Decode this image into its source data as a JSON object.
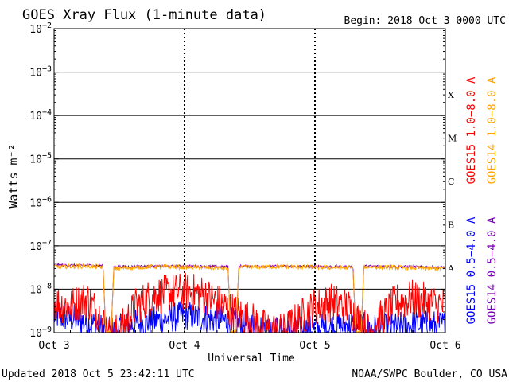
{
  "title": "GOES Xray Flux (1-minute data)",
  "begin": "Begin:  2018 Oct 3 0000 UTC",
  "updated": "Updated 2018 Oct  5 23:42:11 UTC",
  "credit": "NOAA/SWPC Boulder, CO USA",
  "colors": {
    "goes15_long": "#ff0000",
    "goes14_long": "#ffa500",
    "goes15_short": "#0000ff",
    "goes14_short": "#7a00b8",
    "axis": "#000000",
    "background": "#ffffff"
  },
  "chart_data": {
    "type": "line",
    "title": "GOES Xray Flux (1-minute data)",
    "xlabel": "Universal Time",
    "ylabel": "Watts m⁻²",
    "y_scale": "log",
    "ylim": [
      1e-09,
      0.01
    ],
    "xlim": [
      "2018-10-03",
      "2018-10-06"
    ],
    "x_ticks": [
      {
        "value": "2018-10-03",
        "label": "Oct 3"
      },
      {
        "value": "2018-10-04",
        "label": "Oct 4"
      },
      {
        "value": "2018-10-05",
        "label": "Oct 5"
      },
      {
        "value": "2018-10-06",
        "label": "Oct 6"
      }
    ],
    "y_ticks": [
      {
        "exp": -9,
        "base": "10",
        "sup": "−9"
      },
      {
        "exp": -8,
        "base": "10",
        "sup": "−8"
      },
      {
        "exp": -7,
        "base": "10",
        "sup": "−7"
      },
      {
        "exp": -6,
        "base": "10",
        "sup": "−6"
      },
      {
        "exp": -5,
        "base": "10",
        "sup": "−5"
      },
      {
        "exp": -4,
        "base": "10",
        "sup": "−4"
      },
      {
        "exp": -3,
        "base": "10",
        "sup": "−3"
      },
      {
        "exp": -2,
        "base": "10",
        "sup": "−2"
      }
    ],
    "flare_classes": [
      {
        "label": "A",
        "lower_exp": -8
      },
      {
        "label": "B",
        "lower_exp": -7
      },
      {
        "label": "C",
        "lower_exp": -6
      },
      {
        "label": "M",
        "lower_exp": -5
      },
      {
        "label": "X",
        "lower_exp": -4
      }
    ],
    "grid": "horizontal lines at each decade; dotted vertical lines at day boundaries",
    "legend": [
      {
        "key": "goes15_long",
        "label": "GOES15 1.0−8.0 A",
        "color": "#ff0000"
      },
      {
        "key": "goes14_long",
        "label": "GOES14 1.0−8.0 A",
        "color": "#ffa500"
      },
      {
        "key": "goes15_short",
        "label": "GOES15 0.5−4.0 A",
        "color": "#0000ff"
      },
      {
        "key": "goes14_short",
        "label": "GOES14 0.5−4.0 A",
        "color": "#7a00b8"
      }
    ],
    "series": [
      {
        "name": "GOES15 1.0−8.0 A",
        "key": "goes15_long",
        "color": "#ff0000",
        "points": [
          [
            "2018-10-03 00:00",
            5e-09
          ],
          [
            "2018-10-03 03:00",
            4e-09
          ],
          [
            "2018-10-03 06:00",
            6e-09
          ],
          [
            "2018-10-03 08:00",
            3e-09
          ],
          [
            "2018-10-03 10:00",
            1e-09
          ],
          [
            "2018-10-03 12:00",
            1e-09
          ],
          [
            "2018-10-03 15:00",
            4e-09
          ],
          [
            "2018-10-03 18:00",
            7e-09
          ],
          [
            "2018-10-03 21:00",
            8e-09
          ],
          [
            "2018-10-04 00:00",
            9e-09
          ],
          [
            "2018-10-04 03:00",
            8e-09
          ],
          [
            "2018-10-04 06:00",
            5e-09
          ],
          [
            "2018-10-04 09:00",
            3e-09
          ],
          [
            "2018-10-04 12:00",
            2e-09
          ],
          [
            "2018-10-04 15:00",
            1.2e-09
          ],
          [
            "2018-10-04 18:00",
            1e-09
          ],
          [
            "2018-10-04 21:00",
            2e-09
          ],
          [
            "2018-10-05 00:00",
            4e-09
          ],
          [
            "2018-10-05 03:00",
            5e-09
          ],
          [
            "2018-10-05 06:00",
            4e-09
          ],
          [
            "2018-10-05 08:00",
            2e-09
          ],
          [
            "2018-10-05 10:00",
            1e-09
          ],
          [
            "2018-10-05 12:00",
            2e-09
          ],
          [
            "2018-10-05 15:00",
            5e-09
          ],
          [
            "2018-10-05 18:00",
            6e-09
          ],
          [
            "2018-10-05 21:00",
            5e-09
          ],
          [
            "2018-10-06 00:00",
            4e-09
          ]
        ]
      },
      {
        "name": "GOES14 1.0−8.0 A",
        "key": "goes14_long",
        "color": "#ffa500",
        "points": [
          [
            "2018-10-03 00:00",
            3.3e-08
          ],
          [
            "2018-10-03 06:00",
            3.4e-08
          ],
          [
            "2018-10-03 09:00",
            3.2e-08
          ],
          [
            "2018-10-03 09:30",
            1e-09
          ],
          [
            "2018-10-03 10:30",
            1e-09
          ],
          [
            "2018-10-03 11:00",
            3e-08
          ],
          [
            "2018-10-03 18:00",
            3.3e-08
          ],
          [
            "2018-10-04 00:00",
            3.2e-08
          ],
          [
            "2018-10-04 06:00",
            3.1e-08
          ],
          [
            "2018-10-04 08:00",
            3e-08
          ],
          [
            "2018-10-04 08:30",
            1e-09
          ],
          [
            "2018-10-04 09:30",
            1e-09
          ],
          [
            "2018-10-04 10:00",
            3.2e-08
          ],
          [
            "2018-10-04 18:00",
            3.3e-08
          ],
          [
            "2018-10-05 00:00",
            3.2e-08
          ],
          [
            "2018-10-05 07:00",
            3.1e-08
          ],
          [
            "2018-10-05 07:30",
            1e-09
          ],
          [
            "2018-10-05 08:30",
            1e-09
          ],
          [
            "2018-10-05 09:00",
            3.3e-08
          ],
          [
            "2018-10-05 18:00",
            3.1e-08
          ],
          [
            "2018-10-06 00:00",
            3e-08
          ]
        ]
      },
      {
        "name": "GOES15 0.5−4.0 A",
        "key": "goes15_short",
        "color": "#0000ff",
        "points": [
          [
            "2018-10-03 00:00",
            2.5e-09
          ],
          [
            "2018-10-03 04:00",
            2e-09
          ],
          [
            "2018-10-03 08:00",
            1.5e-09
          ],
          [
            "2018-10-03 10:00",
            1e-09
          ],
          [
            "2018-10-03 14:00",
            1.5e-09
          ],
          [
            "2018-10-03 20:00",
            2e-09
          ],
          [
            "2018-10-04 00:00",
            2.5e-09
          ],
          [
            "2018-10-04 06:00",
            2e-09
          ],
          [
            "2018-10-04 12:00",
            1.5e-09
          ],
          [
            "2018-10-04 18:00",
            1e-09
          ],
          [
            "2018-10-05 00:00",
            1.2e-09
          ],
          [
            "2018-10-05 06:00",
            1.5e-09
          ],
          [
            "2018-10-05 12:00",
            1.2e-09
          ],
          [
            "2018-10-05 18:00",
            1.5e-09
          ],
          [
            "2018-10-06 00:00",
            1.5e-09
          ]
        ]
      },
      {
        "name": "GOES14 0.5−4.0 A",
        "key": "goes14_short",
        "color": "#7a00b8",
        "points": [
          [
            "2018-10-03 00:00",
            3.6e-08
          ],
          [
            "2018-10-03 09:00",
            3.5e-08
          ],
          [
            "2018-10-03 09:30",
            1e-09
          ],
          [
            "2018-10-03 10:30",
            1e-09
          ],
          [
            "2018-10-03 11:00",
            3.3e-08
          ],
          [
            "2018-10-04 00:00",
            3.4e-08
          ],
          [
            "2018-10-04 08:00",
            3.3e-08
          ],
          [
            "2018-10-04 08:30",
            1e-09
          ],
          [
            "2018-10-04 09:30",
            1e-09
          ],
          [
            "2018-10-04 10:00",
            3.4e-08
          ],
          [
            "2018-10-05 07:00",
            3.3e-08
          ],
          [
            "2018-10-05 07:30",
            1e-09
          ],
          [
            "2018-10-05 08:30",
            1e-09
          ],
          [
            "2018-10-05 09:00",
            3.4e-08
          ],
          [
            "2018-10-06 00:00",
            3.2e-08
          ]
        ]
      }
    ]
  }
}
